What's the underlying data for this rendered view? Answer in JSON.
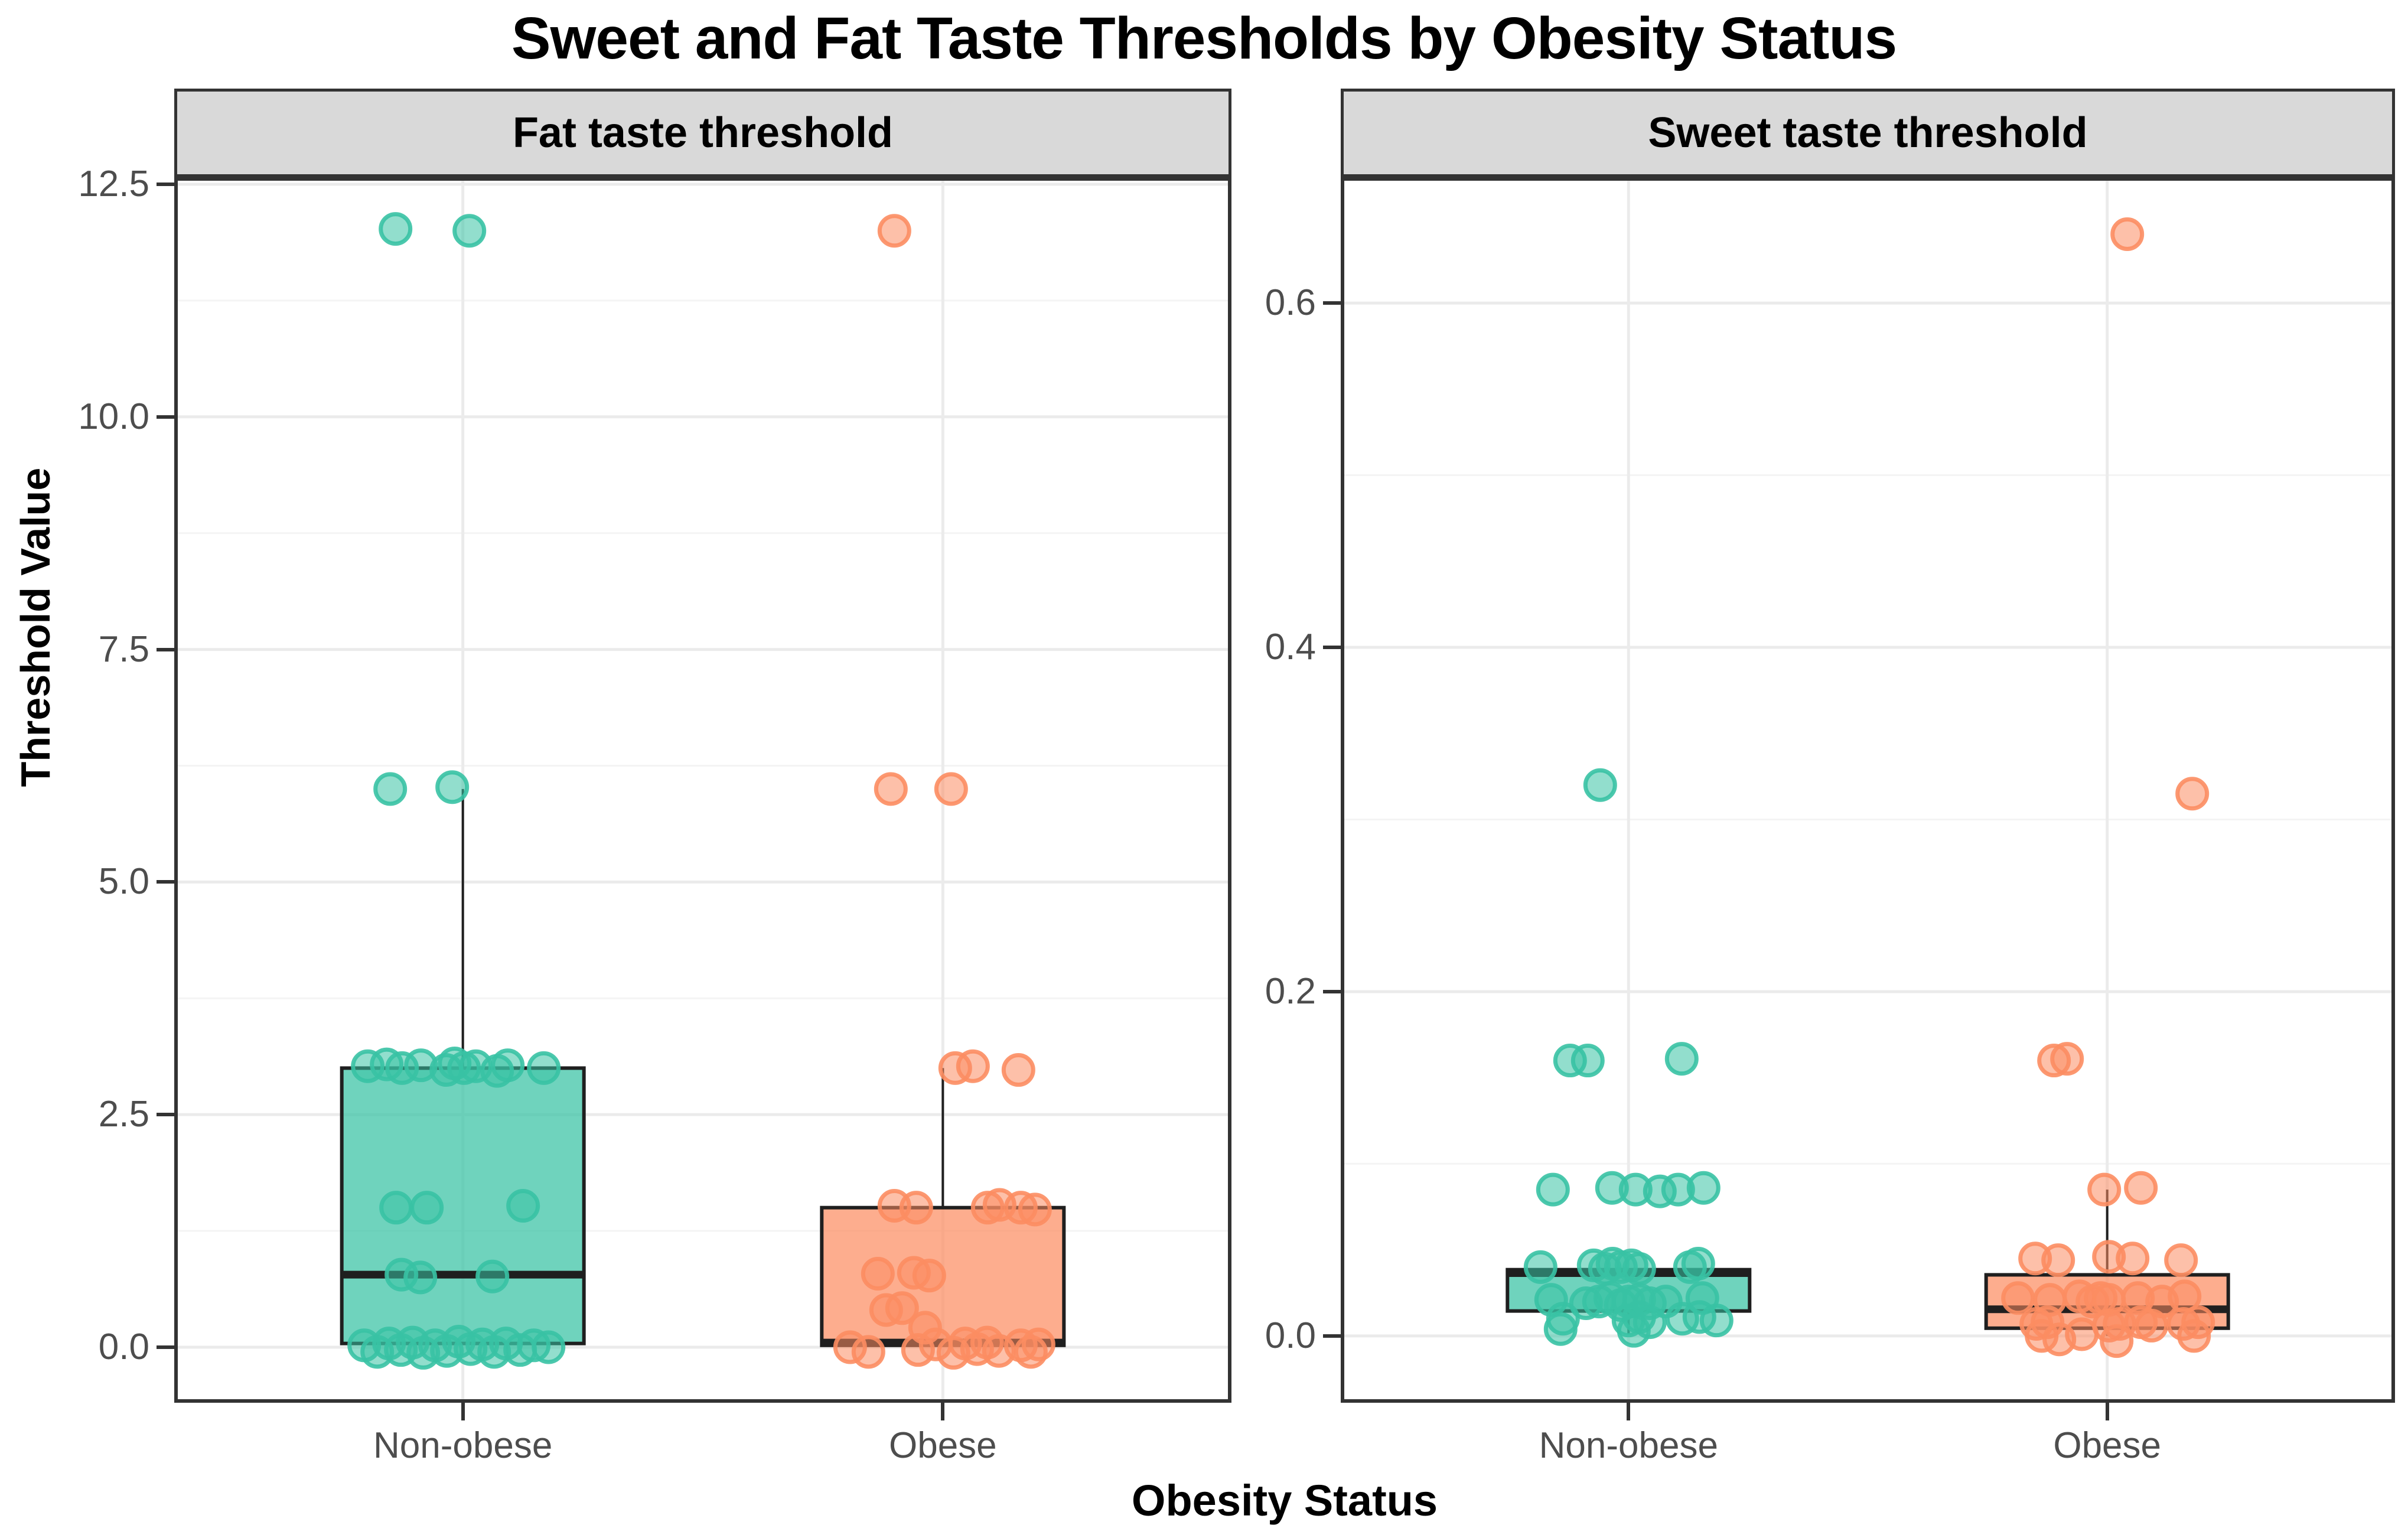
{
  "title": "Sweet and Fat Taste Thresholds by Obesity Status",
  "axes": {
    "x_title": "Obesity Status",
    "y_title": "Threshold Value"
  },
  "colors": {
    "teal": "#38C2A4",
    "orange": "#FC8D62",
    "strip_bg": "#D9D9D9",
    "panel_border": "#333333",
    "box_line": "#1F1F1F",
    "gridline_major": "#EBEBEB",
    "gridline_minor": "#F4F4F4",
    "tick_text": "#4D4D4D"
  },
  "chart_data": [
    {
      "type": "boxplot",
      "facet_label": "Fat taste threshold",
      "categories": [
        "Non-obese",
        "Obese"
      ],
      "ylim": [
        -0.597,
        12.576
      ],
      "yticks": {
        "values": [
          0,
          2.5,
          5,
          7.5,
          10,
          12.5
        ],
        "labels": [
          "0.0",
          "2.5",
          "5.0",
          "7.5",
          "10.0",
          "12.5"
        ]
      },
      "minor_ticks": [
        1.25,
        3.75,
        6.25,
        8.75,
        11.25
      ],
      "grid": true,
      "groups": [
        {
          "category": "Non-obese",
          "color": "teal",
          "box": {
            "q1": 0.04,
            "median": 0.78,
            "q3": 3.0,
            "whisker_low": null,
            "whisker_high": 6.0
          },
          "points": [
            [
              -114,
              12.02
            ],
            [
              11,
              12.0
            ],
            [
              -123,
              6.0
            ],
            [
              -18,
              6.02
            ],
            [
              -161,
              3.02
            ],
            [
              -129,
              3.04
            ],
            [
              -103,
              3.0
            ],
            [
              -71,
              3.03
            ],
            [
              -28,
              2.98
            ],
            [
              -14,
              3.05
            ],
            [
              2,
              3.0
            ],
            [
              22,
              3.02
            ],
            [
              58,
              2.97
            ],
            [
              76,
              3.03
            ],
            [
              137,
              3.0
            ],
            [
              -113,
              1.5
            ],
            [
              -61,
              1.5
            ],
            [
              102,
              1.52
            ],
            [
              -104,
              0.78
            ],
            [
              -72,
              0.75
            ],
            [
              50,
              0.76
            ],
            [
              -167,
              0.02
            ],
            [
              -145,
              -0.05
            ],
            [
              -125,
              0.04
            ],
            [
              -105,
              -0.03
            ],
            [
              -85,
              0.05
            ],
            [
              -67,
              -0.06
            ],
            [
              -47,
              0.02
            ],
            [
              -27,
              -0.04
            ],
            [
              -7,
              0.06
            ],
            [
              13,
              -0.02
            ],
            [
              33,
              0.03
            ],
            [
              53,
              -0.05
            ],
            [
              73,
              0.04
            ],
            [
              97,
              -0.03
            ],
            [
              120,
              0.02
            ],
            [
              145,
              0.0
            ]
          ]
        },
        {
          "category": "Obese",
          "color": "orange",
          "box": {
            "q1": 0.02,
            "median": 0.05,
            "q3": 1.5,
            "whisker_low": null,
            "whisker_high": 3.0
          },
          "points": [
            [
              -82,
              12.0
            ],
            [
              -88,
              6.0
            ],
            [
              14,
              6.0
            ],
            [
              21,
              3.0
            ],
            [
              51,
              3.02
            ],
            [
              128,
              2.98
            ],
            [
              -82,
              1.52
            ],
            [
              -45,
              1.5
            ],
            [
              76,
              1.5
            ],
            [
              96,
              1.53
            ],
            [
              132,
              1.5
            ],
            [
              156,
              1.48
            ],
            [
              -110,
              0.79
            ],
            [
              -49,
              0.8
            ],
            [
              -23,
              0.77
            ],
            [
              -96,
              0.4
            ],
            [
              -69,
              0.42
            ],
            [
              -30,
              0.21
            ],
            [
              -157,
              0.0
            ],
            [
              -126,
              -0.05
            ],
            [
              -42,
              -0.03
            ],
            [
              -12,
              0.03
            ],
            [
              18,
              -0.06
            ],
            [
              38,
              0.04
            ],
            [
              58,
              -0.02
            ],
            [
              75,
              0.05
            ],
            [
              95,
              -0.04
            ],
            [
              132,
              0.02
            ],
            [
              149,
              -0.05
            ],
            [
              162,
              0.03
            ]
          ]
        }
      ]
    },
    {
      "type": "boxplot",
      "facet_label": "Sweet taste threshold",
      "categories": [
        "Non-obese",
        "Obese"
      ],
      "ylim": [
        -0.0388,
        0.6731
      ],
      "yticks": {
        "values": [
          0,
          0.2,
          0.4,
          0.6
        ],
        "labels": [
          "0.0",
          "0.2",
          "0.4",
          "0.6"
        ]
      },
      "minor_ticks": [
        0.1,
        0.3,
        0.5
      ],
      "grid": true,
      "groups": [
        {
          "category": "Non-obese",
          "color": "teal",
          "box": {
            "q1": 0.0145,
            "median": 0.0365,
            "q3": 0.0385,
            "whisker_low": 0.001,
            "whisker_high": null
          },
          "points": [
            [
              -48,
              0.32
            ],
            [
              -99,
              0.16
            ],
            [
              -69,
              0.16
            ],
            [
              90,
              0.161
            ],
            [
              -128,
              0.085
            ],
            [
              -28,
              0.086
            ],
            [
              12,
              0.085
            ],
            [
              53,
              0.084
            ],
            [
              84,
              0.085
            ],
            [
              127,
              0.086
            ],
            [
              -149,
              0.04
            ],
            [
              -59,
              0.041
            ],
            [
              -40,
              0.039
            ],
            [
              -27,
              0.042
            ],
            [
              -13,
              0.04
            ],
            [
              5,
              0.041
            ],
            [
              18,
              0.039
            ],
            [
              104,
              0.04
            ],
            [
              118,
              0.042
            ],
            [
              -131,
              0.021
            ],
            [
              -72,
              0.019
            ],
            [
              -50,
              0.02
            ],
            [
              -31,
              0.022
            ],
            [
              -13,
              0.018
            ],
            [
              0,
              0.02
            ],
            [
              18,
              0.021
            ],
            [
              36,
              0.019
            ],
            [
              63,
              0.02
            ],
            [
              125,
              0.022
            ],
            [
              -111,
              0.01
            ],
            [
              0,
              0.009
            ],
            [
              18,
              0.011
            ],
            [
              36,
              0.008
            ],
            [
              91,
              0.01
            ],
            [
              120,
              0.011
            ],
            [
              149,
              0.009
            ],
            [
              -115,
              0.004
            ],
            [
              9,
              0.003
            ]
          ]
        },
        {
          "category": "Obese",
          "color": "orange",
          "box": {
            "q1": 0.0045,
            "median": 0.0155,
            "q3": 0.0355,
            "whisker_low": 0.0,
            "whisker_high": 0.085
          },
          "points": [
            [
              34,
              0.64
            ],
            [
              144,
              0.315
            ],
            [
              -90,
              0.16
            ],
            [
              -68,
              0.161
            ],
            [
              -5,
              0.085
            ],
            [
              57,
              0.086
            ],
            [
              -122,
              0.045
            ],
            [
              -83,
              0.044
            ],
            [
              3,
              0.046
            ],
            [
              43,
              0.045
            ],
            [
              125,
              0.044
            ],
            [
              -151,
              0.022
            ],
            [
              -97,
              0.021
            ],
            [
              -47,
              0.023
            ],
            [
              -25,
              0.02
            ],
            [
              -11,
              0.022
            ],
            [
              3,
              0.021
            ],
            [
              52,
              0.022
            ],
            [
              93,
              0.02
            ],
            [
              131,
              0.023
            ],
            [
              -120,
              0.007
            ],
            [
              -101,
              0.008
            ],
            [
              3,
              0.006
            ],
            [
              21,
              0.007
            ],
            [
              57,
              0.008
            ],
            [
              75,
              0.006
            ],
            [
              129,
              0.007
            ],
            [
              154,
              0.008
            ],
            [
              -111,
              0.0
            ],
            [
              -81,
              -0.002
            ],
            [
              -43,
              0.001
            ],
            [
              16,
              -0.003
            ],
            [
              147,
              0.0
            ]
          ]
        }
      ]
    }
  ]
}
